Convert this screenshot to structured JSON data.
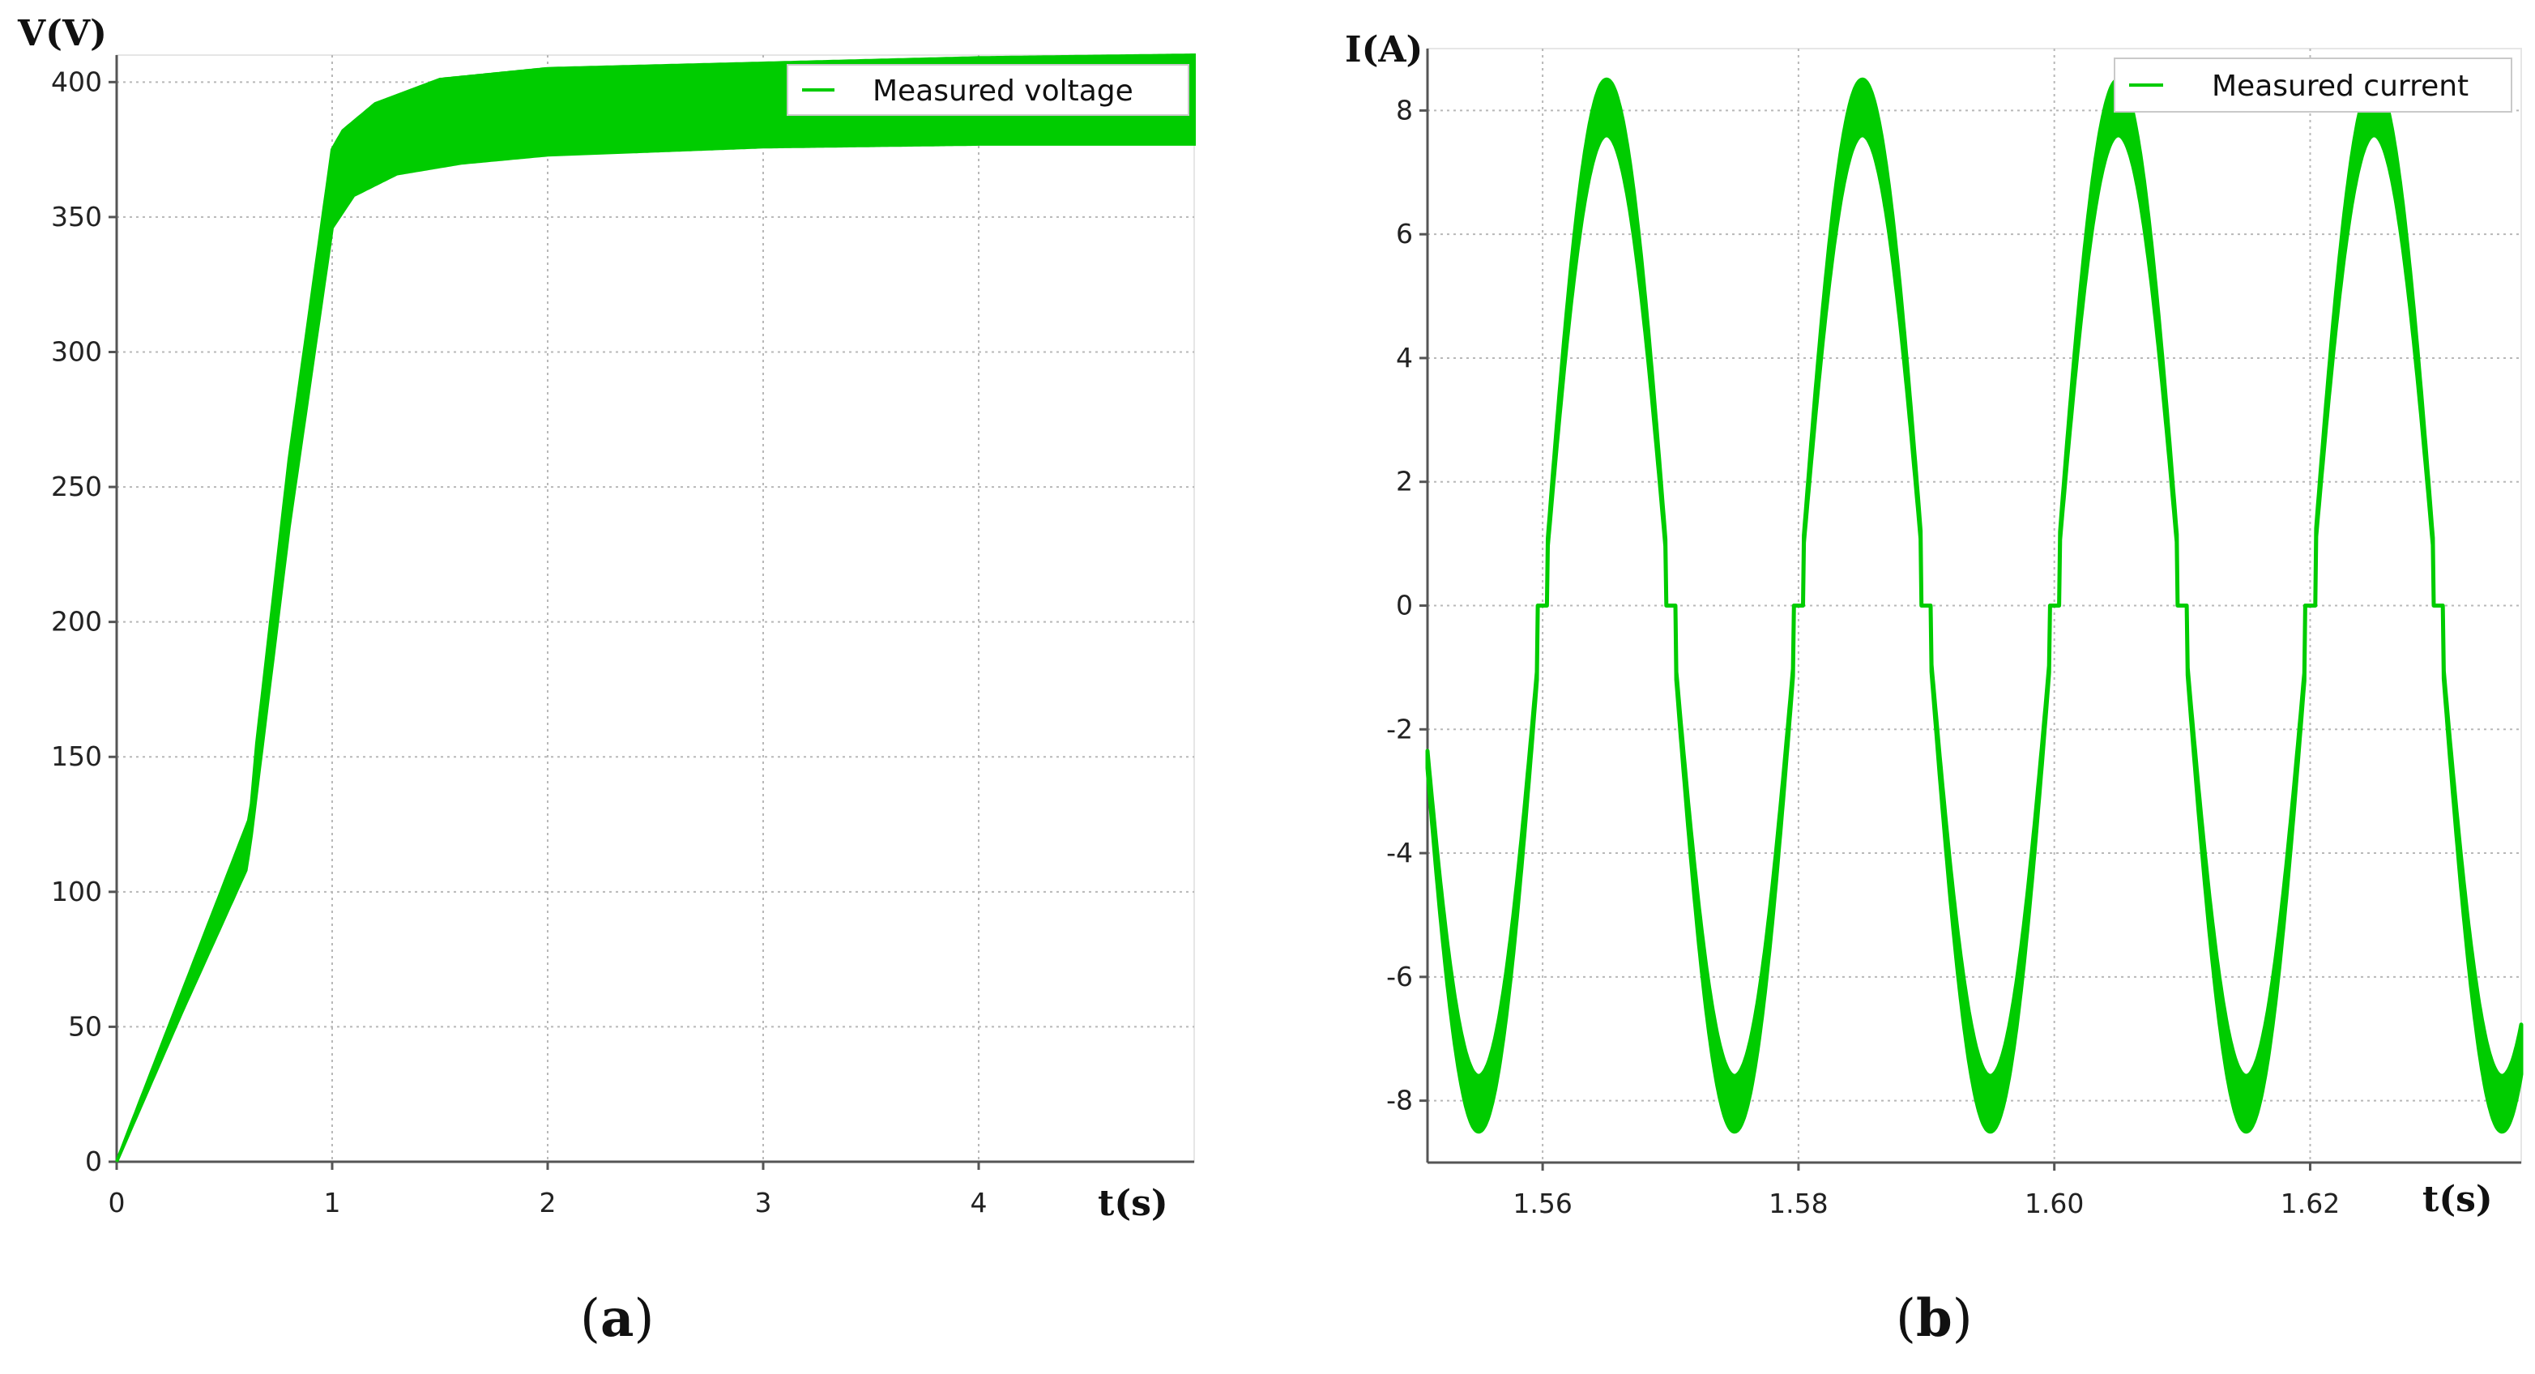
{
  "chart_data": [
    {
      "id": "a",
      "type": "line",
      "caption_letter": "a",
      "ylabel": "V(V)",
      "xlabel": "t(s)",
      "xlim": [
        0,
        5
      ],
      "ylim": [
        0,
        410
      ],
      "x_ticks": [
        "0",
        "1",
        "2",
        "3",
        "4"
      ],
      "y_ticks": [
        "0",
        "50",
        "100",
        "150",
        "200",
        "250",
        "300",
        "350",
        "400"
      ],
      "grid": true,
      "legend_position": "top-right",
      "series": [
        {
          "name": "Measured voltage",
          "color": "#00cc00",
          "upper": {
            "x": [
              0,
              0.3,
              0.62,
              0.65,
              0.8,
              1.0,
              1.05,
              1.2,
              1.5,
              2.0,
              3.0,
              4.0,
              5.0
            ],
            "y": [
              0,
              62,
              128,
              155,
              260,
              375,
              382,
              392,
              401,
              405,
              407,
              409,
              410
            ]
          },
          "lower": {
            "x": [
              0,
              0.3,
              0.6,
              0.62,
              0.8,
              1.0,
              1.1,
              1.3,
              1.6,
              2.0,
              3.0,
              4.0,
              5.0
            ],
            "y": [
              0,
              55,
              108,
              118,
              235,
              346,
              358,
              366,
              370,
              373,
              376,
              377,
              377
            ]
          }
        }
      ]
    },
    {
      "id": "b",
      "type": "line",
      "caption_letter": "b",
      "ylabel": "I(A)",
      "xlabel": "t(s)",
      "xlim": [
        1.551,
        1.6365
      ],
      "ylim": [
        -9,
        9
      ],
      "x_ticks": [
        "1.56",
        "1.58",
        "1.60",
        "1.62"
      ],
      "y_ticks": [
        "-8",
        "-6",
        "-4",
        "-2",
        "0",
        "2",
        "4",
        "6",
        "8"
      ],
      "grid": true,
      "legend_position": "top-right",
      "series": [
        {
          "name": "Measured current",
          "color": "#00cc00",
          "frequency_hz": 50,
          "peak_outer": 8.5,
          "peak_inner": 7.6,
          "zero_dead_band_s": 0.0008
        }
      ]
    }
  ]
}
